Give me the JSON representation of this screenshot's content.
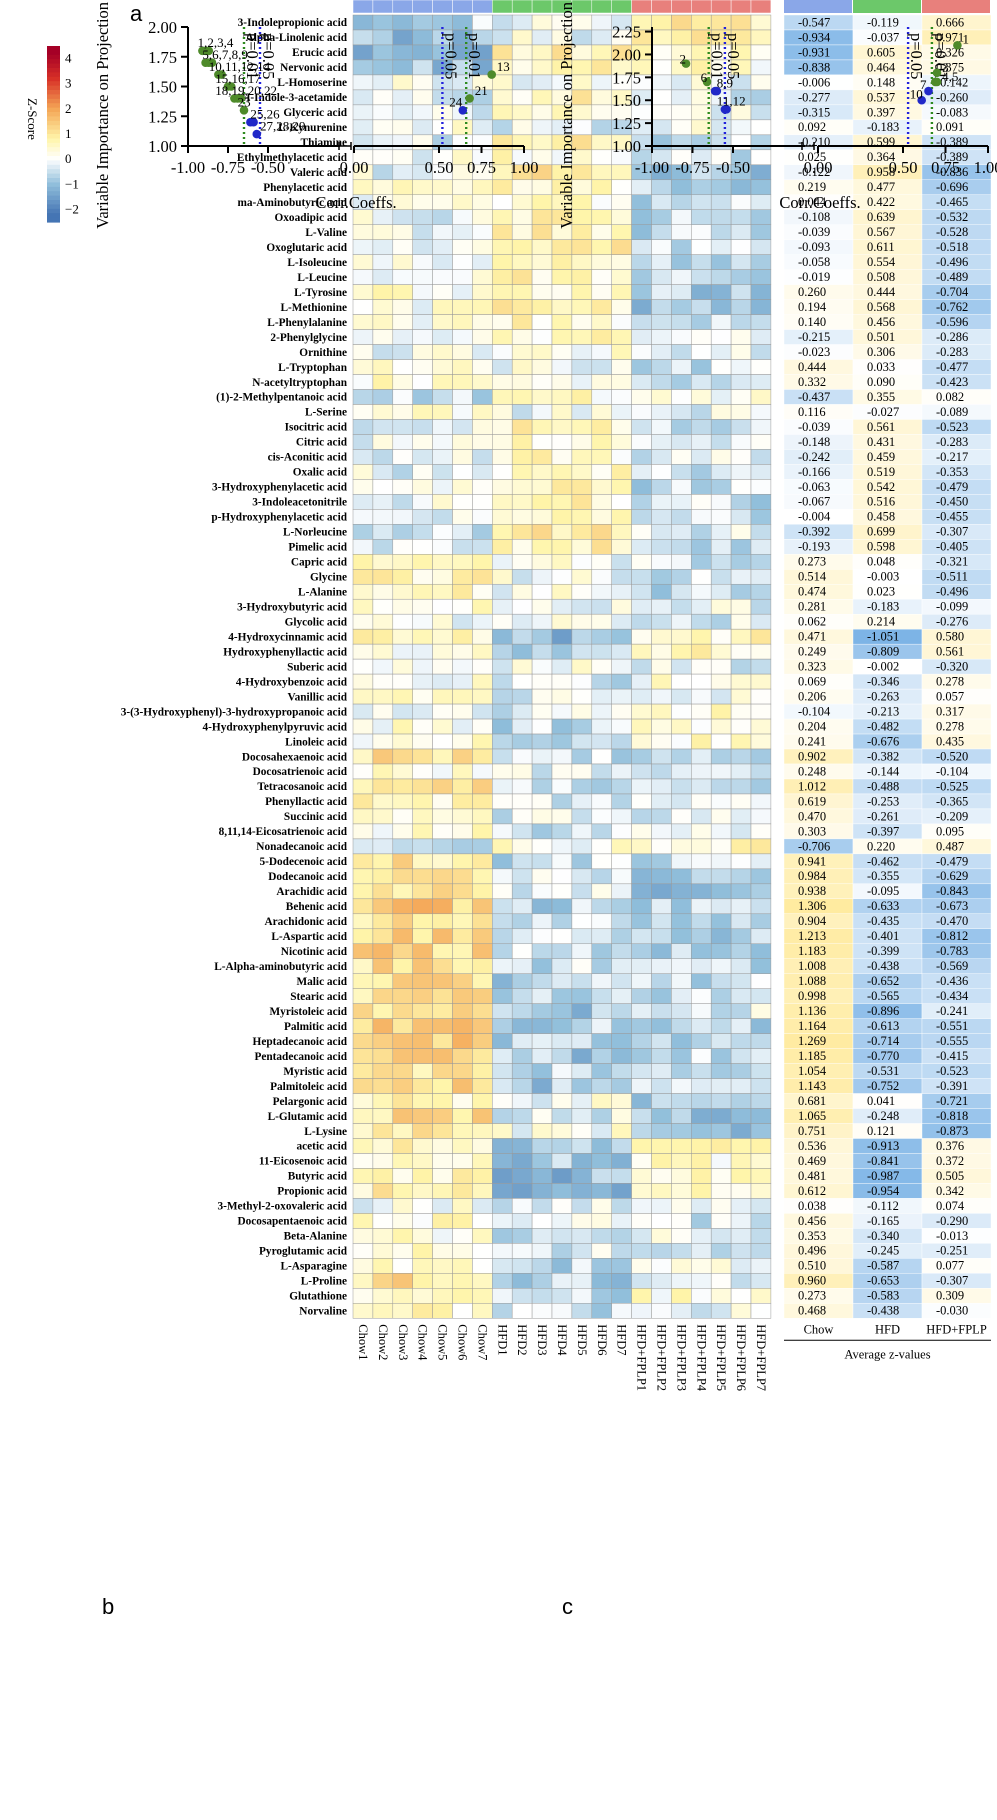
{
  "colors": {
    "chow": "#8aa7e8",
    "hfd": "#6cc86a",
    "hfd_fplp": "#e8807c",
    "green_dot": "#4e8a2a",
    "blue_dot": "#2028c8",
    "green_line": "#2e8a1e",
    "blue_line": "#2222dd"
  },
  "panels": {
    "a": "a",
    "b": "b",
    "c": "c"
  },
  "chart_data": [
    {
      "type": "heatmap",
      "panel": "a",
      "legend_title": "Z-Score",
      "legend_ticks": [
        "4",
        "3",
        "2",
        "1",
        "0",
        "−1",
        "−2"
      ],
      "legend_range": [
        -2.5,
        4.5
      ],
      "columns": [
        "Chow1",
        "Chow2",
        "Chow3",
        "Chow4",
        "Chow5",
        "Chow6",
        "Chow7",
        "HFD1",
        "HFD2",
        "HFD3",
        "HFD4",
        "HFD5",
        "HFD6",
        "HFD7",
        "HFD+FPLP1",
        "HFD+FPLP2",
        "HFD+FPLP3",
        "HFD+FPLP4",
        "HFD+FPLP5",
        "HFD+FPLP6",
        "HFD+FPLP7"
      ],
      "column_groups": [
        "chow",
        "chow",
        "chow",
        "chow",
        "chow",
        "chow",
        "chow",
        "hfd",
        "hfd",
        "hfd",
        "hfd",
        "hfd",
        "hfd",
        "hfd",
        "hfd_fplp",
        "hfd_fplp",
        "hfd_fplp",
        "hfd_fplp",
        "hfd_fplp",
        "hfd_fplp",
        "hfd_fplp"
      ],
      "rows": [
        "3-Indolepropionic acid",
        "Alpha-Linolenic acid",
        "Erucic acid",
        "Nervonic acid",
        "L-Homoserine",
        "1H-Indole-3-acetamide",
        "Glyceric acid",
        "L-Kynurenine",
        "Thiamine",
        "Ethylmethylacetic acid",
        "Valeric acid",
        "Phenylacetic acid",
        "ma-Aminobutyric acid",
        "Oxoadipic acid",
        "L-Valine",
        "Oxoglutaric acid",
        "L-Isoleucine",
        "L-Leucine",
        "L-Tyrosine",
        "L-Methionine",
        "L-Phenylalanine",
        "2-Phenylglycine",
        "Ornithine",
        "L-Tryptophan",
        "N-acetyltryptophan",
        "(1)-2-Methylpentanoic acid",
        "L-Serine",
        "Isocitric acid",
        "Citric acid",
        "cis-Aconitic acid",
        "Oxalic acid",
        "3-Hydroxyphenylacetic acid",
        "3-Indoleacetonitrile",
        "p-Hydroxyphenylacetic acid",
        "L-Norleucine",
        "Pimelic acid",
        "Capric acid",
        "Glycine",
        "L-Alanine",
        "3-Hydroxybutyric acid",
        "Glycolic acid",
        "4-Hydroxycinnamic acid",
        "Hydroxyphenyllactic acid",
        "Suberic acid",
        "4-Hydroxybenzoic acid",
        "Vanillic acid",
        "3-(3-Hydroxyphenyl)-3-hydroxypropanoic acid",
        "4-Hydroxyphenylpyruvic acid",
        "Linoleic acid",
        "Docosahexaenoic acid",
        "Docosatrienoic acid",
        "Tetracosanoic acid",
        "Phenyllactic acid",
        "Succinic acid",
        "8,11,14-Eicosatrienoic acid",
        "Nonadecanoic acid",
        "5-Dodecenoic acid",
        "Dodecanoic acid",
        "Arachidic acid",
        "Behenic acid",
        "Arachidonic acid",
        "L-Aspartic acid",
        "Nicotinic acid",
        "L-Alpha-aminobutyric acid",
        "Malic acid",
        "Stearic acid",
        "Myristoleic acid",
        "Palmitic acid",
        "Heptadecanoic acid",
        "Pentadecanoic acid",
        "Myristic acid",
        "Palmitoleic acid",
        "Pelargonic acid",
        "L-Glutamic acid",
        "L-Lysine",
        "acetic acid",
        "11-Eicosenoic acid",
        "Butyric acid",
        "Propionic acid",
        "3-Methyl-2-oxovaleric acid",
        "Docosapentaenoic acid",
        "Beta-Alanine",
        "Pyroglutamic acid",
        "L-Asparagine",
        "L-Proline",
        "Glutathione",
        "Norvaline"
      ],
      "avg_header": [
        "Chow",
        "HFD",
        "HFD+FPLP"
      ],
      "avg_title": "Average z-values",
      "averages": [
        [
          "-0.547",
          "-0.119",
          "0.666"
        ],
        [
          "-0.934",
          "-0.037",
          "0.971"
        ],
        [
          "-0.931",
          "0.605",
          "0.326"
        ],
        [
          "-0.838",
          "0.464",
          "0.375"
        ],
        [
          "-0.006",
          "0.148",
          "-0.142"
        ],
        [
          "-0.277",
          "0.537",
          "-0.260"
        ],
        [
          "-0.315",
          "0.397",
          "-0.083"
        ],
        [
          "0.092",
          "-0.183",
          "0.091"
        ],
        [
          "-0.210",
          "0.599",
          "-0.389"
        ],
        [
          "0.025",
          "0.364",
          "-0.389"
        ],
        [
          "-0.122",
          "0.958",
          "-0.836"
        ],
        [
          "0.219",
          "0.477",
          "-0.696"
        ],
        [
          "0.044",
          "0.422",
          "-0.465"
        ],
        [
          "-0.108",
          "0.639",
          "-0.532"
        ],
        [
          "-0.039",
          "0.567",
          "-0.528"
        ],
        [
          "-0.093",
          "0.611",
          "-0.518"
        ],
        [
          "-0.058",
          "0.554",
          "-0.496"
        ],
        [
          "-0.019",
          "0.508",
          "-0.489"
        ],
        [
          "0.260",
          "0.444",
          "-0.704"
        ],
        [
          "0.194",
          "0.568",
          "-0.762"
        ],
        [
          "0.140",
          "0.456",
          "-0.596"
        ],
        [
          "-0.215",
          "0.501",
          "-0.286"
        ],
        [
          "-0.023",
          "0.306",
          "-0.283"
        ],
        [
          "0.444",
          "0.033",
          "-0.477"
        ],
        [
          "0.332",
          "0.090",
          "-0.423"
        ],
        [
          "-0.437",
          "0.355",
          "0.082"
        ],
        [
          "0.116",
          "-0.027",
          "-0.089"
        ],
        [
          "-0.039",
          "0.561",
          "-0.523"
        ],
        [
          "-0.148",
          "0.431",
          "-0.283"
        ],
        [
          "-0.242",
          "0.459",
          "-0.217"
        ],
        [
          "-0.166",
          "0.519",
          "-0.353"
        ],
        [
          "-0.063",
          "0.542",
          "-0.479"
        ],
        [
          "-0.067",
          "0.516",
          "-0.450"
        ],
        [
          "-0.004",
          "0.458",
          "-0.455"
        ],
        [
          "-0.392",
          "0.699",
          "-0.307"
        ],
        [
          "-0.193",
          "0.598",
          "-0.405"
        ],
        [
          "0.273",
          "0.048",
          "-0.321"
        ],
        [
          "0.514",
          "-0.003",
          "-0.511"
        ],
        [
          "0.474",
          "0.023",
          "-0.496"
        ],
        [
          "0.281",
          "-0.183",
          "-0.099"
        ],
        [
          "0.062",
          "0.214",
          "-0.276"
        ],
        [
          "0.471",
          "-1.051",
          "0.580"
        ],
        [
          "0.249",
          "-0.809",
          "0.561"
        ],
        [
          "0.323",
          "-0.002",
          "-0.320"
        ],
        [
          "0.069",
          "-0.346",
          "0.278"
        ],
        [
          "0.206",
          "-0.263",
          "0.057"
        ],
        [
          "-0.104",
          "-0.213",
          "0.317"
        ],
        [
          "0.204",
          "-0.482",
          "0.278"
        ],
        [
          "0.241",
          "-0.676",
          "0.435"
        ],
        [
          "0.902",
          "-0.382",
          "-0.520"
        ],
        [
          "0.248",
          "-0.144",
          "-0.104"
        ],
        [
          "1.012",
          "-0.488",
          "-0.525"
        ],
        [
          "0.619",
          "-0.253",
          "-0.365"
        ],
        [
          "0.470",
          "-0.261",
          "-0.209"
        ],
        [
          "0.303",
          "-0.397",
          "0.095"
        ],
        [
          "-0.706",
          "0.220",
          "0.487"
        ],
        [
          "0.941",
          "-0.462",
          "-0.479"
        ],
        [
          "0.984",
          "-0.355",
          "-0.629"
        ],
        [
          "0.938",
          "-0.095",
          "-0.843"
        ],
        [
          "1.306",
          "-0.633",
          "-0.673"
        ],
        [
          "0.904",
          "-0.435",
          "-0.470"
        ],
        [
          "1.213",
          "-0.401",
          "-0.812"
        ],
        [
          "1.183",
          "-0.399",
          "-0.783"
        ],
        [
          "1.008",
          "-0.438",
          "-0.569"
        ],
        [
          "1.088",
          "-0.652",
          "-0.436"
        ],
        [
          "0.998",
          "-0.565",
          "-0.434"
        ],
        [
          "1.136",
          "-0.896",
          "-0.241"
        ],
        [
          "1.164",
          "-0.613",
          "-0.551"
        ],
        [
          "1.269",
          "-0.714",
          "-0.555"
        ],
        [
          "1.185",
          "-0.770",
          "-0.415"
        ],
        [
          "1.054",
          "-0.531",
          "-0.523"
        ],
        [
          "1.143",
          "-0.752",
          "-0.391"
        ],
        [
          "0.681",
          "0.041",
          "-0.721"
        ],
        [
          "1.065",
          "-0.248",
          "-0.818"
        ],
        [
          "0.751",
          "0.121",
          "-0.873"
        ],
        [
          "0.536",
          "-0.913",
          "0.376"
        ],
        [
          "0.469",
          "-0.841",
          "0.372"
        ],
        [
          "0.481",
          "-0.987",
          "0.505"
        ],
        [
          "0.612",
          "-0.954",
          "0.342"
        ],
        [
          "0.038",
          "-0.112",
          "0.074"
        ],
        [
          "0.456",
          "-0.165",
          "-0.290"
        ],
        [
          "0.353",
          "-0.340",
          "-0.013"
        ],
        [
          "0.496",
          "-0.245",
          "-0.251"
        ],
        [
          "0.510",
          "-0.587",
          "0.077"
        ],
        [
          "0.960",
          "-0.653",
          "-0.307"
        ],
        [
          "0.273",
          "-0.583",
          "0.309"
        ],
        [
          "0.468",
          "-0.438",
          "-0.030"
        ]
      ]
    },
    {
      "type": "scatter",
      "panel": "b",
      "ylabel": "Variable Importance on Projection (VIP)",
      "xlabel": "Corr.Coeffs.",
      "ylim": [
        1.0,
        2.0
      ],
      "yticks": [
        "1.00",
        "1.25",
        "1.50",
        "1.75",
        "2.00"
      ],
      "xticks_left": [
        "-1.00",
        "-0.75",
        "-0.50"
      ],
      "xticks_right": [
        "0.00",
        "0.50",
        "0.75",
        "1.00"
      ],
      "lines": [
        {
          "x": -0.65,
          "label": "p=0.01",
          "color": "green"
        },
        {
          "x": -0.55,
          "label": "p=0.05",
          "color": "blue"
        },
        {
          "x": 0.52,
          "label": "p=0.05",
          "color": "blue"
        },
        {
          "x": 0.66,
          "label": "p=0.01",
          "color": "green"
        }
      ],
      "points": [
        {
          "x": -0.91,
          "y": 1.8,
          "c": "green"
        },
        {
          "x": -0.89,
          "y": 1.8,
          "c": "green"
        },
        {
          "x": -0.87,
          "y": 1.8,
          "c": "green"
        },
        {
          "x": -0.89,
          "y": 1.7,
          "c": "green"
        },
        {
          "x": -0.87,
          "y": 1.7,
          "c": "green"
        },
        {
          "x": -0.85,
          "y": 1.7,
          "c": "green"
        },
        {
          "x": -0.81,
          "y": 1.6,
          "c": "green"
        },
        {
          "x": -0.79,
          "y": 1.6,
          "c": "green"
        },
        {
          "x": -0.75,
          "y": 1.5,
          "c": "green"
        },
        {
          "x": -0.73,
          "y": 1.5,
          "c": "green"
        },
        {
          "x": -0.71,
          "y": 1.4,
          "c": "green"
        },
        {
          "x": -0.69,
          "y": 1.4,
          "c": "green"
        },
        {
          "x": -0.67,
          "y": 1.4,
          "c": "green"
        },
        {
          "x": -0.65,
          "y": 1.3,
          "c": "green"
        },
        {
          "x": -0.61,
          "y": 1.2,
          "c": "blue"
        },
        {
          "x": -0.59,
          "y": 1.2,
          "c": "blue"
        },
        {
          "x": -0.57,
          "y": 1.1,
          "c": "blue"
        },
        {
          "x": 0.81,
          "y": 1.6,
          "c": "green"
        },
        {
          "x": 0.68,
          "y": 1.4,
          "c": "green"
        },
        {
          "x": 0.64,
          "y": 1.3,
          "c": "blue"
        }
      ],
      "labels": [
        {
          "text": "1,2,3,4",
          "x": -0.94,
          "y": 1.83
        },
        {
          "text": "5,6,7,8,9",
          "x": -0.91,
          "y": 1.73
        },
        {
          "text": "10,11,12,14",
          "x": -0.87,
          "y": 1.63
        },
        {
          "text": "15,16,17",
          "x": -0.83,
          "y": 1.53
        },
        {
          "text": "18,19,20,22",
          "x": -0.83,
          "y": 1.43
        },
        {
          "text": "23",
          "x": -0.69,
          "y": 1.33
        },
        {
          "text": "25,26",
          "x": -0.61,
          "y": 1.23
        },
        {
          "text": "27,28,29",
          "x": -0.55,
          "y": 1.13
        },
        {
          "text": "13",
          "x": 0.84,
          "y": 1.63
        },
        {
          "text": "21",
          "x": 0.71,
          "y": 1.43
        },
        {
          "text": "24",
          "x": 0.56,
          "y": 1.33
        }
      ]
    },
    {
      "type": "scatter",
      "panel": "c",
      "ylabel": "Variable Importance on Projection (VIP)",
      "xlabel": "Corr.Coeffs.",
      "ylim": [
        1.0,
        2.3
      ],
      "yticks": [
        "1.00",
        "1.25",
        "1.50",
        "1.75",
        "2.00",
        "2.25"
      ],
      "xticks_left": [
        "-1.00",
        "-0.75",
        "-0.50"
      ],
      "xticks_right": [
        "0.00",
        "0.50",
        "0.75",
        "1.00"
      ],
      "lines": [
        {
          "x": -0.65,
          "label": "p=0.01",
          "color": "green"
        },
        {
          "x": -0.55,
          "label": "p=0.05",
          "color": "blue"
        },
        {
          "x": 0.53,
          "label": "p=0.05",
          "color": "blue"
        },
        {
          "x": 0.67,
          "label": "p=0.01",
          "color": "green"
        }
      ],
      "points": [
        {
          "x": 0.82,
          "y": 2.1,
          "c": "green"
        },
        {
          "x": -0.79,
          "y": 1.9,
          "c": "green"
        },
        {
          "x": 0.7,
          "y": 1.8,
          "c": "green"
        },
        {
          "x": 0.69,
          "y": 1.7,
          "c": "green"
        },
        {
          "x": 0.7,
          "y": 1.7,
          "c": "green"
        },
        {
          "x": -0.66,
          "y": 1.7,
          "c": "green"
        },
        {
          "x": 0.65,
          "y": 1.6,
          "c": "blue"
        },
        {
          "x": -0.61,
          "y": 1.6,
          "c": "blue"
        },
        {
          "x": -0.6,
          "y": 1.6,
          "c": "blue"
        },
        {
          "x": 0.61,
          "y": 1.5,
          "c": "blue"
        },
        {
          "x": -0.55,
          "y": 1.4,
          "c": "blue"
        },
        {
          "x": -0.54,
          "y": 1.4,
          "c": "blue"
        }
      ],
      "labels": [
        {
          "text": "1",
          "x": 0.85,
          "y": 2.12
        },
        {
          "text": "2",
          "x": -0.83,
          "y": 1.9
        },
        {
          "text": "3",
          "x": 0.73,
          "y": 1.81
        },
        {
          "text": "4,5",
          "x": 0.73,
          "y": 1.71
        },
        {
          "text": "6",
          "x": -0.7,
          "y": 1.7
        },
        {
          "text": "7",
          "x": 0.6,
          "y": 1.62
        },
        {
          "text": "8,9",
          "x": -0.6,
          "y": 1.64
        },
        {
          "text": "10",
          "x": 0.54,
          "y": 1.52
        },
        {
          "text": "11,12",
          "x": -0.6,
          "y": 1.44
        }
      ]
    }
  ]
}
